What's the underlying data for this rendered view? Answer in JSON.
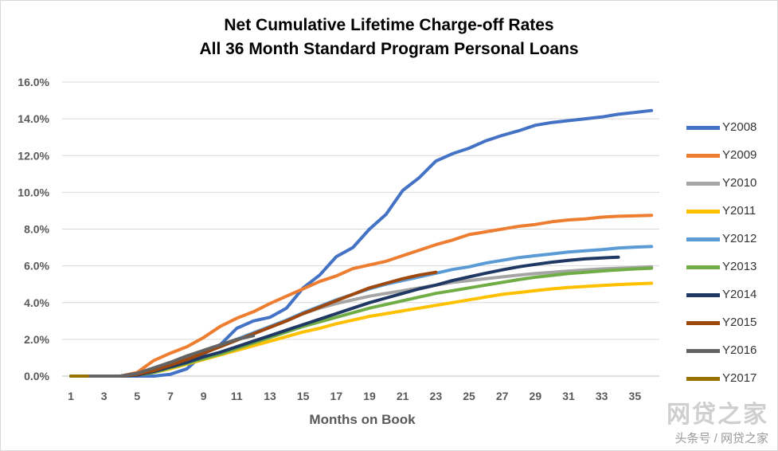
{
  "chart_data": {
    "type": "line",
    "title": "Net Cumulative Lifetime Charge-off Rates",
    "subtitle": "All 36 Month Standard Program Personal Loans",
    "xlabel": "Months on Book",
    "ylabel": "",
    "xlim": [
      1,
      36
    ],
    "ylim": [
      0,
      16
    ],
    "x_ticks": [
      1,
      3,
      5,
      7,
      9,
      11,
      13,
      15,
      17,
      19,
      21,
      23,
      25,
      27,
      29,
      31,
      33,
      35
    ],
    "y_ticks": [
      "0.0%",
      "2.0%",
      "4.0%",
      "6.0%",
      "8.0%",
      "10.0%",
      "12.0%",
      "14.0%",
      "16.0%"
    ],
    "grid": "horizontal",
    "legend_position": "right",
    "series": [
      {
        "name": "Y2008",
        "color": "#4472C4",
        "x": [
          1,
          2,
          3,
          4,
          5,
          6,
          7,
          8,
          9,
          10,
          11,
          12,
          13,
          14,
          15,
          16,
          17,
          18,
          19,
          20,
          21,
          22,
          23,
          24,
          25,
          26,
          27,
          28,
          29,
          30,
          31,
          32,
          33,
          34,
          35,
          36
        ],
        "values": [
          0,
          0,
          0,
          0,
          0,
          0,
          0.1,
          0.4,
          1.2,
          1.7,
          2.6,
          3.0,
          3.2,
          3.7,
          4.8,
          5.5,
          6.5,
          7.0,
          8.0,
          8.8,
          10.1,
          10.8,
          11.7,
          12.1,
          12.4,
          12.8,
          13.1,
          13.35,
          13.65,
          13.8,
          13.9,
          14.0,
          14.1,
          14.25,
          14.35,
          14.45
        ]
      },
      {
        "name": "Y2009",
        "color": "#ED7D31",
        "x": [
          1,
          2,
          3,
          4,
          5,
          6,
          7,
          8,
          9,
          10,
          11,
          12,
          13,
          14,
          15,
          16,
          17,
          18,
          19,
          20,
          21,
          22,
          23,
          24,
          25,
          26,
          27,
          28,
          29,
          30,
          31,
          32,
          33,
          34,
          35,
          36
        ],
        "values": [
          0,
          0,
          0,
          0,
          0.2,
          0.85,
          1.25,
          1.6,
          2.1,
          2.7,
          3.15,
          3.5,
          3.95,
          4.35,
          4.75,
          5.15,
          5.45,
          5.85,
          6.05,
          6.25,
          6.55,
          6.85,
          7.15,
          7.4,
          7.7,
          7.85,
          8.0,
          8.15,
          8.25,
          8.4,
          8.5,
          8.55,
          8.65,
          8.7,
          8.72,
          8.75
        ]
      },
      {
        "name": "Y2010",
        "color": "#A5A5A5",
        "x": [
          1,
          2,
          3,
          4,
          5,
          6,
          7,
          8,
          9,
          10,
          11,
          12,
          13,
          14,
          15,
          16,
          17,
          18,
          19,
          20,
          21,
          22,
          23,
          24,
          25,
          26,
          27,
          28,
          29,
          30,
          31,
          32,
          33,
          34,
          35,
          36
        ],
        "values": [
          0,
          0,
          0,
          0,
          0.1,
          0.3,
          0.6,
          0.95,
          1.3,
          1.65,
          2.0,
          2.35,
          2.7,
          3.05,
          3.4,
          3.7,
          3.95,
          4.15,
          4.35,
          4.5,
          4.65,
          4.8,
          4.95,
          5.1,
          5.2,
          5.3,
          5.4,
          5.5,
          5.58,
          5.65,
          5.72,
          5.78,
          5.83,
          5.87,
          5.9,
          5.95
        ]
      },
      {
        "name": "Y2011",
        "color": "#FFC000",
        "x": [
          1,
          2,
          3,
          4,
          5,
          6,
          7,
          8,
          9,
          10,
          11,
          12,
          13,
          14,
          15,
          16,
          17,
          18,
          19,
          20,
          21,
          22,
          23,
          24,
          25,
          26,
          27,
          28,
          29,
          30,
          31,
          32,
          33,
          34,
          35,
          36
        ],
        "values": [
          0,
          0,
          0,
          0,
          0.05,
          0.2,
          0.4,
          0.65,
          0.9,
          1.15,
          1.4,
          1.65,
          1.9,
          2.15,
          2.4,
          2.6,
          2.85,
          3.05,
          3.25,
          3.4,
          3.55,
          3.7,
          3.85,
          4.0,
          4.15,
          4.3,
          4.45,
          4.55,
          4.65,
          4.75,
          4.82,
          4.88,
          4.93,
          4.98,
          5.02,
          5.05
        ]
      },
      {
        "name": "Y2012",
        "color": "#5B9BD5",
        "x": [
          1,
          2,
          3,
          4,
          5,
          6,
          7,
          8,
          9,
          10,
          11,
          12,
          13,
          14,
          15,
          16,
          17,
          18,
          19,
          20,
          21,
          22,
          23,
          24,
          25,
          26,
          27,
          28,
          29,
          30,
          31,
          32,
          33,
          34,
          35,
          36
        ],
        "values": [
          0,
          0,
          0,
          0,
          0.1,
          0.3,
          0.6,
          0.95,
          1.3,
          1.65,
          2.0,
          2.35,
          2.7,
          3.05,
          3.45,
          3.8,
          4.15,
          4.45,
          4.75,
          5.0,
          5.2,
          5.4,
          5.6,
          5.8,
          5.95,
          6.15,
          6.3,
          6.45,
          6.55,
          6.65,
          6.75,
          6.82,
          6.88,
          6.97,
          7.02,
          7.05
        ]
      },
      {
        "name": "Y2013",
        "color": "#70AD47",
        "x": [
          1,
          2,
          3,
          4,
          5,
          6,
          7,
          8,
          9,
          10,
          11,
          12,
          13,
          14,
          15,
          16,
          17,
          18,
          19,
          20,
          21,
          22,
          23,
          24,
          25,
          26,
          27,
          28,
          29,
          30,
          31,
          32,
          33,
          34,
          35,
          36
        ],
        "values": [
          0,
          0,
          0,
          0,
          0.05,
          0.2,
          0.45,
          0.7,
          0.95,
          1.2,
          1.5,
          1.8,
          2.1,
          2.4,
          2.7,
          2.95,
          3.2,
          3.45,
          3.7,
          3.9,
          4.1,
          4.3,
          4.5,
          4.65,
          4.8,
          4.95,
          5.1,
          5.25,
          5.38,
          5.48,
          5.58,
          5.65,
          5.72,
          5.78,
          5.83,
          5.87
        ]
      },
      {
        "name": "Y2014",
        "color": "#203864",
        "x": [
          1,
          2,
          3,
          4,
          5,
          6,
          7,
          8,
          9,
          10,
          11,
          12,
          13,
          14,
          15,
          16,
          17,
          18,
          19,
          20,
          21,
          22,
          23,
          24,
          25,
          26,
          27,
          28,
          29,
          30,
          31,
          32,
          33,
          34
        ],
        "values": [
          0,
          0,
          0,
          0,
          0.05,
          0.25,
          0.5,
          0.75,
          1.05,
          1.3,
          1.6,
          1.9,
          2.2,
          2.5,
          2.8,
          3.1,
          3.4,
          3.7,
          4.0,
          4.25,
          4.5,
          4.75,
          4.95,
          5.2,
          5.4,
          5.6,
          5.78,
          5.95,
          6.08,
          6.2,
          6.3,
          6.38,
          6.43,
          6.47
        ]
      },
      {
        "name": "Y2015",
        "color": "#9E480E",
        "x": [
          1,
          2,
          3,
          4,
          5,
          6,
          7,
          8,
          9,
          10,
          11,
          12,
          13,
          14,
          15,
          16,
          17,
          18,
          19,
          20,
          21,
          22,
          23
        ],
        "values": [
          0,
          0,
          0,
          0,
          0.1,
          0.3,
          0.6,
          0.9,
          1.25,
          1.6,
          1.95,
          2.3,
          2.65,
          3.0,
          3.4,
          3.75,
          4.1,
          4.45,
          4.8,
          5.05,
          5.3,
          5.5,
          5.65
        ]
      },
      {
        "name": "Y2016",
        "color": "#636363",
        "x": [
          1,
          2,
          3,
          4,
          5,
          6,
          7,
          8,
          9,
          10,
          11,
          12
        ],
        "values": [
          0,
          0,
          0,
          0,
          0.15,
          0.45,
          0.75,
          1.1,
          1.4,
          1.7,
          2.0,
          2.2
        ]
      },
      {
        "name": "Y2017",
        "color": "#997300",
        "x": [
          1,
          2
        ],
        "values": [
          0,
          0
        ]
      }
    ]
  },
  "watermark": {
    "logo": "网贷之家",
    "text": "头条号 / 网贷之家"
  }
}
